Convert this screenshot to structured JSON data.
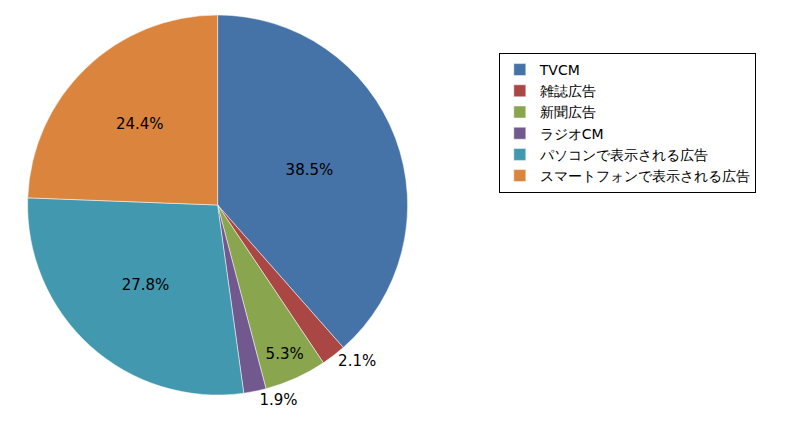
{
  "chart_data": {
    "type": "pie",
    "categories": [
      "TVCM",
      "雑誌広告",
      "新聞広告",
      "ラジオCM",
      "パソコンで表示される広告",
      "スマートフォンで表示される広告"
    ],
    "values": [
      38.5,
      2.1,
      5.3,
      1.9,
      27.8,
      24.4
    ],
    "value_labels": [
      "38.5%",
      "2.1%",
      "5.3%",
      "1.9%",
      "27.8%",
      "24.4%"
    ],
    "colors": [
      "#4572A7",
      "#AA4643",
      "#89A54E",
      "#71588F",
      "#4198AF",
      "#DB843D"
    ],
    "data_labels": true,
    "legend": "right"
  }
}
